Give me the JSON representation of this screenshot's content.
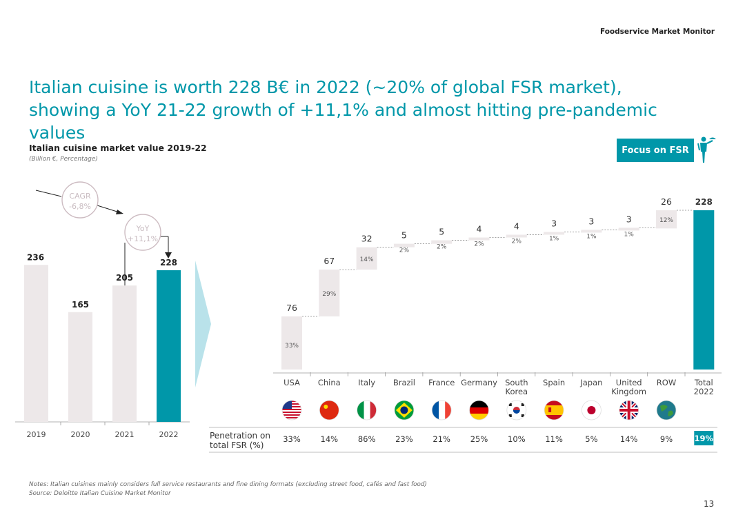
{
  "header": {
    "brand": "Foodservice Market Monitor"
  },
  "title": "Italian cuisine is worth 228 B€ in 2022 (~20% of global FSR market), showing a YoY 21-22 growth of +11,1% and almost hitting pre-pandemic values",
  "badge": {
    "label": "Focus on FSR",
    "icon": "waiter-icon"
  },
  "footer": {
    "notes": "Notes: Italian cuisines mainly considers full service restaurants and fine dining formats (excluding street food, cafés and fast food)",
    "source": "Source: Deloitte Italian Cuisine Market Monitor",
    "page_number": "13"
  },
  "colors": {
    "accent": "#0097a9",
    "bar": "#ede8e9",
    "text": "#222222",
    "muted": "#777777"
  },
  "chart_data": [
    {
      "type": "bar",
      "title": "Italian cuisine market value 2019-22",
      "subtitle": "(Billion €, Percentage)",
      "categories": [
        "2019",
        "2020",
        "2021",
        "2022"
      ],
      "values": [
        236,
        165,
        205,
        228
      ],
      "highlight": "2022",
      "annotations": [
        {
          "label": "CAGR",
          "value": "-6,8%"
        },
        {
          "label": "YoY",
          "value": "+11,1%"
        }
      ]
    },
    {
      "type": "waterfall",
      "categories": [
        "USA",
        "China",
        "Italy",
        "Brazil",
        "France",
        "Germany",
        "South Korea",
        "Spain",
        "Japan",
        "United Kingdom",
        "ROW",
        "Total 2022"
      ],
      "category_lines": [
        [
          "USA"
        ],
        [
          "China"
        ],
        [
          "Italy"
        ],
        [
          "Brazil"
        ],
        [
          "France"
        ],
        [
          "Germany"
        ],
        [
          "South",
          "Korea"
        ],
        [
          "Spain"
        ],
        [
          "Japan"
        ],
        [
          "United",
          "Kingdom"
        ],
        [
          "ROW"
        ],
        [
          "Total",
          "2022"
        ]
      ],
      "values": [
        76,
        67,
        32,
        5,
        5,
        4,
        4,
        3,
        3,
        3,
        26,
        228
      ],
      "shares": [
        "33%",
        "29%",
        "14%",
        "2%",
        "2%",
        "2%",
        "2%",
        "1%",
        "1%",
        "1%",
        "12%",
        ""
      ],
      "flags": [
        "usa-flag-icon",
        "china-flag-icon",
        "italy-flag-icon",
        "brazil-flag-icon",
        "france-flag-icon",
        "germany-flag-icon",
        "south-korea-flag-icon",
        "spain-flag-icon",
        "japan-flag-icon",
        "united-kingdom-flag-icon",
        "world-icon",
        ""
      ],
      "penetration_label": [
        "Penetration on",
        "total FSR (%)"
      ],
      "penetration": [
        "33%",
        "14%",
        "86%",
        "23%",
        "21%",
        "25%",
        "10%",
        "11%",
        "5%",
        "14%",
        "9%",
        "19%"
      ],
      "total_index": 11
    }
  ]
}
